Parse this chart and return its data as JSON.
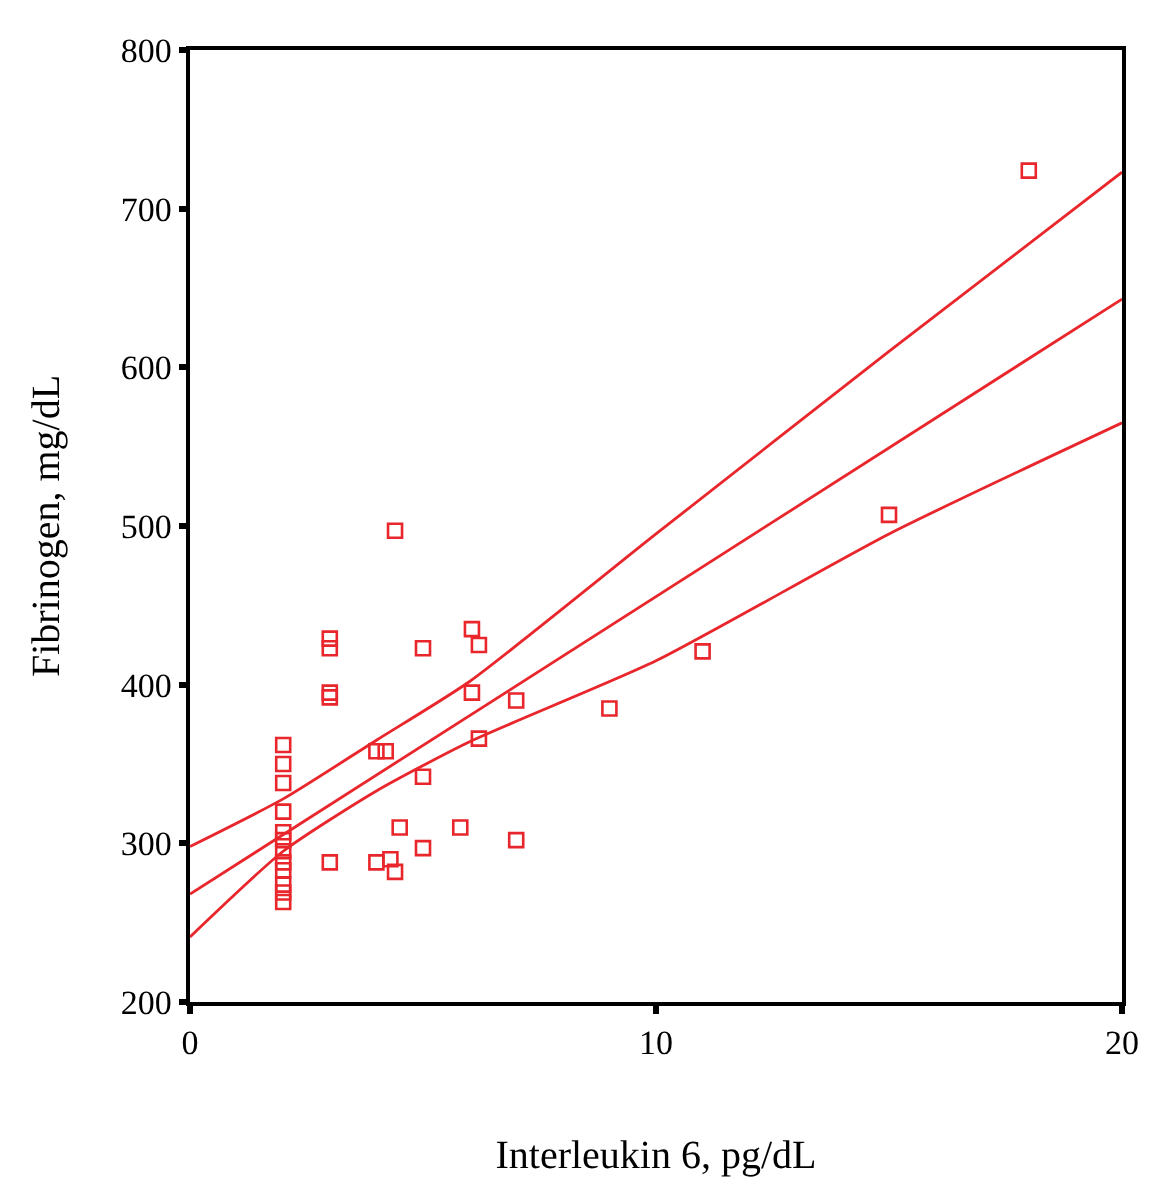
{
  "chart_data": {
    "type": "scatter",
    "xlabel": "Interleukin 6, pg/dL",
    "ylabel": "Fibrinogen, mg/dL",
    "xlim": [
      0,
      20
    ],
    "xticks": [
      0,
      10,
      20
    ],
    "ylim": [
      200,
      800
    ],
    "yticks": [
      200,
      300,
      400,
      500,
      600,
      700,
      800
    ],
    "marker": "square",
    "series": [
      {
        "color": "#e8262b",
        "x": [
          2,
          2,
          2,
          2,
          2,
          2,
          2,
          2,
          2,
          2,
          2,
          2,
          3,
          3,
          3,
          3,
          3,
          4,
          4,
          4.2,
          4.3,
          4.4,
          4.4,
          4.5,
          5,
          5,
          5,
          5.8,
          6.05,
          6.05,
          6.2,
          6.2,
          7,
          7,
          9,
          11,
          15,
          18
        ],
        "values": [
          362,
          350,
          338,
          320,
          307,
          302,
          295,
          288,
          283,
          274,
          269,
          263,
          429,
          423,
          395,
          392,
          288,
          358,
          288,
          358,
          290,
          497,
          282,
          310,
          423,
          342,
          297,
          310,
          435,
          395,
          425,
          366,
          390,
          302,
          385,
          421,
          507,
          724
        ]
      },
      {
        "type": "line",
        "color": "#e8262b",
        "marker": "none",
        "line_style": "solid",
        "x": [
          0,
          2,
          4,
          6,
          10,
          15,
          20
        ],
        "values": [
          298,
          328,
          365,
          402,
          495,
          610,
          723
        ]
      },
      {
        "type": "line",
        "color": "#e8262b",
        "marker": "none",
        "line_style": "solid",
        "x": [
          0,
          20
        ],
        "values": [
          268,
          643
        ]
      },
      {
        "type": "line",
        "color": "#e8262b",
        "marker": "none",
        "line_style": "solid",
        "x": [
          0,
          2,
          4,
          6,
          10,
          15,
          20
        ],
        "values": [
          241,
          295,
          333,
          364,
          415,
          495,
          565
        ]
      }
    ]
  }
}
